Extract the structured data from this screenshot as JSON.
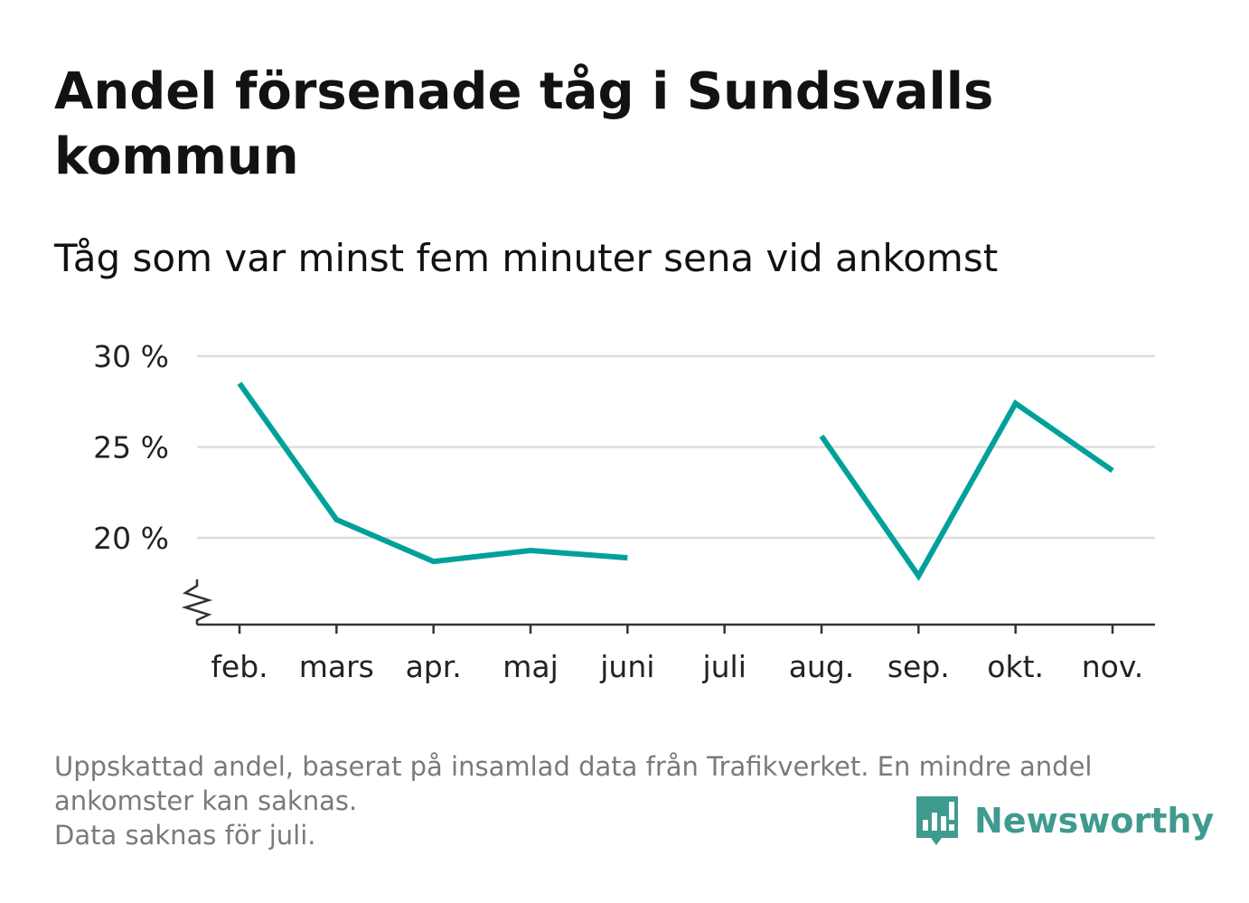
{
  "title": "Andel försenade tåg i Sundsvalls kommun",
  "subtitle": "Tåg som var minst fem minuter sena vid ankomst",
  "footnote": {
    "line1": "Uppskattad andel, baserat på insamlad data från Trafikverket. En mindre andel",
    "line2": "ankomster kan saknas.",
    "line3": "Data saknas för juli."
  },
  "brand": {
    "name": "Newsworthy",
    "icon": "newsworthy-bar-chart-icon",
    "color": "#3f9a8f"
  },
  "colors": {
    "line": "#00a19a",
    "grid": "#dddddd",
    "axis": "#333333"
  },
  "chart_data": {
    "type": "line",
    "categories": [
      "feb.",
      "mars",
      "apr.",
      "maj",
      "juni",
      "juli",
      "aug.",
      "sep.",
      "okt.",
      "nov."
    ],
    "series": [
      {
        "values": [
          28.5,
          21.0,
          18.7,
          19.3,
          18.9,
          null,
          25.6,
          17.9,
          27.4,
          23.7
        ]
      }
    ],
    "yticks": [
      20,
      25,
      30
    ],
    "ytick_labels": [
      "20 %",
      "25 %",
      "30 %"
    ],
    "ylim": [
      15.2,
      30
    ],
    "y_axis_break": true,
    "grid": true,
    "legend": "none"
  }
}
